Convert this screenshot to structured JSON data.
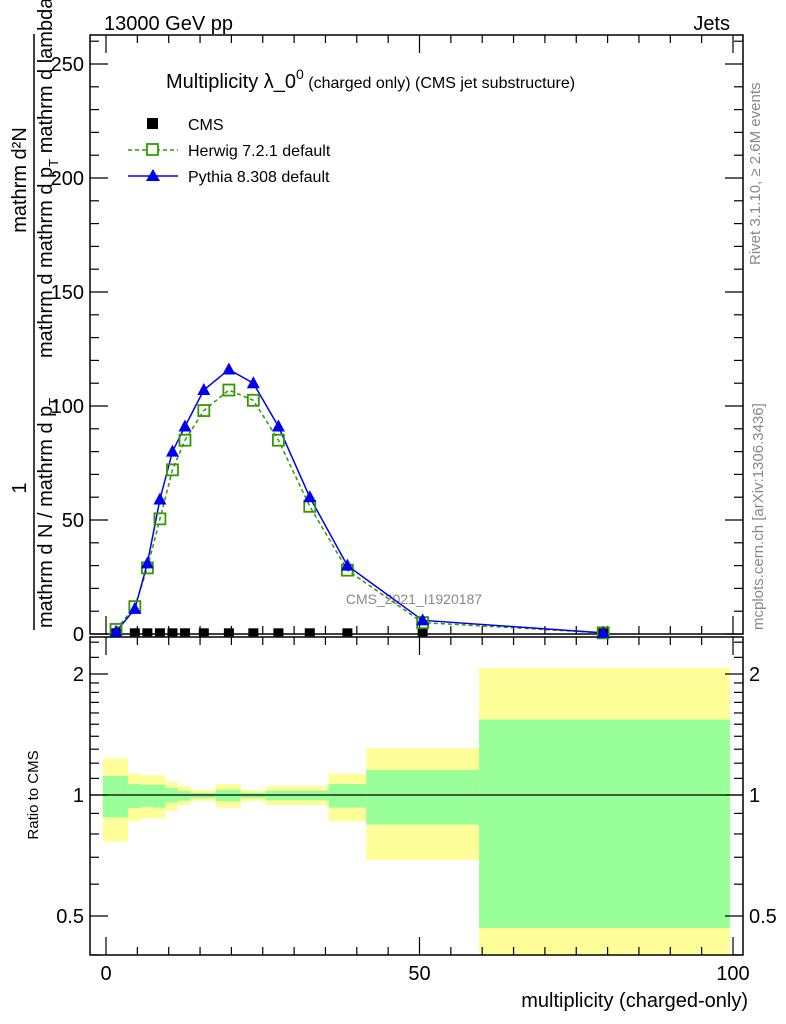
{
  "header": {
    "left": "13000 GeV pp",
    "right": "Jets"
  },
  "side_text": {
    "rivet": "Rivet 3.1.10, ≥ 2.6M events",
    "mcplots": "mcplots.cern.ch [arXiv:1306.3436]"
  },
  "watermark": "CMS_2021_I1920187",
  "colors": {
    "cms": "#000000",
    "herwig": "#339900",
    "pythia": "#0000ee",
    "band_yellow": "#ffff99",
    "band_green": "#99ff99"
  },
  "chart_data": [
    {
      "type": "line",
      "title_main": "Multiplicity λ_0",
      "title_sup": "0",
      "title_small": " (charged only) (CMS jet substructure)",
      "ylabel_num1": "1",
      "ylabel_den1": "mathrm d N / mathrm d p",
      "ylabel_num2": "mathrm d²N",
      "ylabel_den2": "mathrm d p",
      "ylabel_den2b": "mathrm d lambda",
      "ylabel_sub": "T",
      "ylabel_mid": "mathrm d",
      "xlim": [
        -4.5,
        100
      ],
      "ylim": [
        0,
        262
      ],
      "yticks": [
        0,
        50,
        100,
        150,
        200,
        250
      ],
      "x": [
        1.6,
        4.6,
        6.6,
        8.6,
        10.6,
        12.6,
        15.6,
        19.6,
        23.5,
        27.5,
        32.5,
        38.5,
        50.5,
        79.3
      ],
      "series": [
        {
          "name": "CMS",
          "style": "square-filled",
          "values": [
            0.3,
            0.3,
            0.3,
            0.3,
            0.3,
            0.3,
            0.3,
            0.3,
            0.3,
            0.3,
            0.3,
            0.3,
            0.3,
            0.3
          ]
        },
        {
          "name": "Herwig 7.2.1 default",
          "style": "open-square-dashed",
          "values": [
            2,
            12,
            29,
            50.5,
            72,
            85,
            98,
            107,
            102.5,
            85,
            56,
            28,
            5,
            0.5
          ]
        },
        {
          "name": "Pythia 8.308 default",
          "style": "triangle-solid",
          "values": [
            1,
            11,
            31,
            59,
            80,
            91,
            107,
            116,
            110,
            91,
            60,
            30,
            6,
            0.5
          ]
        }
      ],
      "legend_position": "top-left"
    },
    {
      "type": "area",
      "ylabel": "Ratio to CMS",
      "xlabel": "multiplicity (charged-only)",
      "yscale": "log",
      "ylim": [
        0.4,
        2.47
      ],
      "yticks": [
        {
          "v": 0.5,
          "label": "0.5"
        },
        {
          "v": 1,
          "label": "1"
        },
        {
          "v": 2,
          "label": "2"
        }
      ],
      "xticks": [
        {
          "v": 0,
          "label": "0"
        },
        {
          "v": 50,
          "label": "50"
        },
        {
          "v": 100,
          "label": "100"
        }
      ],
      "bin_edges": [
        -0.5,
        3.5,
        5.5,
        7.5,
        9.5,
        11.5,
        13.5,
        17.5,
        21.5,
        25.5,
        29.5,
        35.5,
        41.5,
        59.5,
        99.5
      ],
      "yellow_hi": [
        1.234,
        1.13,
        1.12,
        1.12,
        1.08,
        1.053,
        1.029,
        1.065,
        1.029,
        1.053,
        1.053,
        1.13,
        1.307,
        2.07
      ],
      "green_hi": [
        1.115,
        1.065,
        1.06,
        1.06,
        1.04,
        1.023,
        1.013,
        1.031,
        1.013,
        1.025,
        1.025,
        1.065,
        1.154,
        1.54
      ],
      "green_lo": [
        0.88,
        0.928,
        0.935,
        0.93,
        0.957,
        0.968,
        0.983,
        0.965,
        0.983,
        0.97,
        0.97,
        0.93,
        0.844,
        0.467
      ],
      "yellow_lo": [
        0.765,
        0.86,
        0.875,
        0.875,
        0.914,
        0.944,
        0.966,
        0.93,
        0.966,
        0.944,
        0.944,
        0.86,
        0.69,
        0.3
      ]
    }
  ]
}
